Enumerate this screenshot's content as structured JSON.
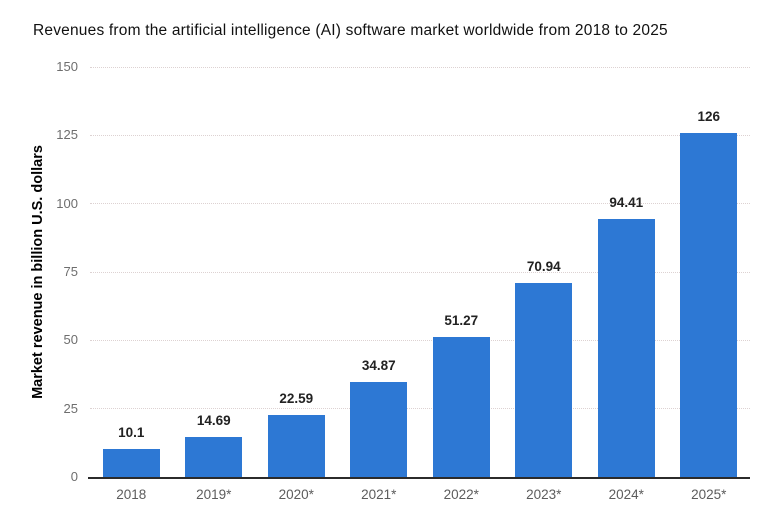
{
  "chart_data": {
    "type": "bar",
    "title": "Revenues from the artificial intelligence (AI) software market worldwide from 2018 to 2025",
    "ylabel": "Market revenue in billion U.S. dollars",
    "xlabel": "",
    "categories": [
      "2018",
      "2019*",
      "2020*",
      "2021*",
      "2022*",
      "2023*",
      "2024*",
      "2025*"
    ],
    "values": [
      10.1,
      14.69,
      22.59,
      34.87,
      51.27,
      70.94,
      94.41,
      126
    ],
    "value_labels": [
      "10.1",
      "14.69",
      "22.59",
      "34.87",
      "51.27",
      "70.94",
      "94.41",
      "126"
    ],
    "ylim": [
      0,
      150
    ],
    "yticks": [
      0,
      25,
      50,
      75,
      100,
      125,
      150
    ],
    "grid": "horizontal dotted",
    "legend": "none",
    "colors": {
      "bar": "#2d78d4",
      "grid": "#ddd2d2",
      "axis_line": "#2b2b2b",
      "y_tick_label": "#6e6e6e",
      "x_tick_label": "#5c5c5c",
      "value_label": "#222222",
      "title": "#111111",
      "background": "#ffffff"
    }
  }
}
